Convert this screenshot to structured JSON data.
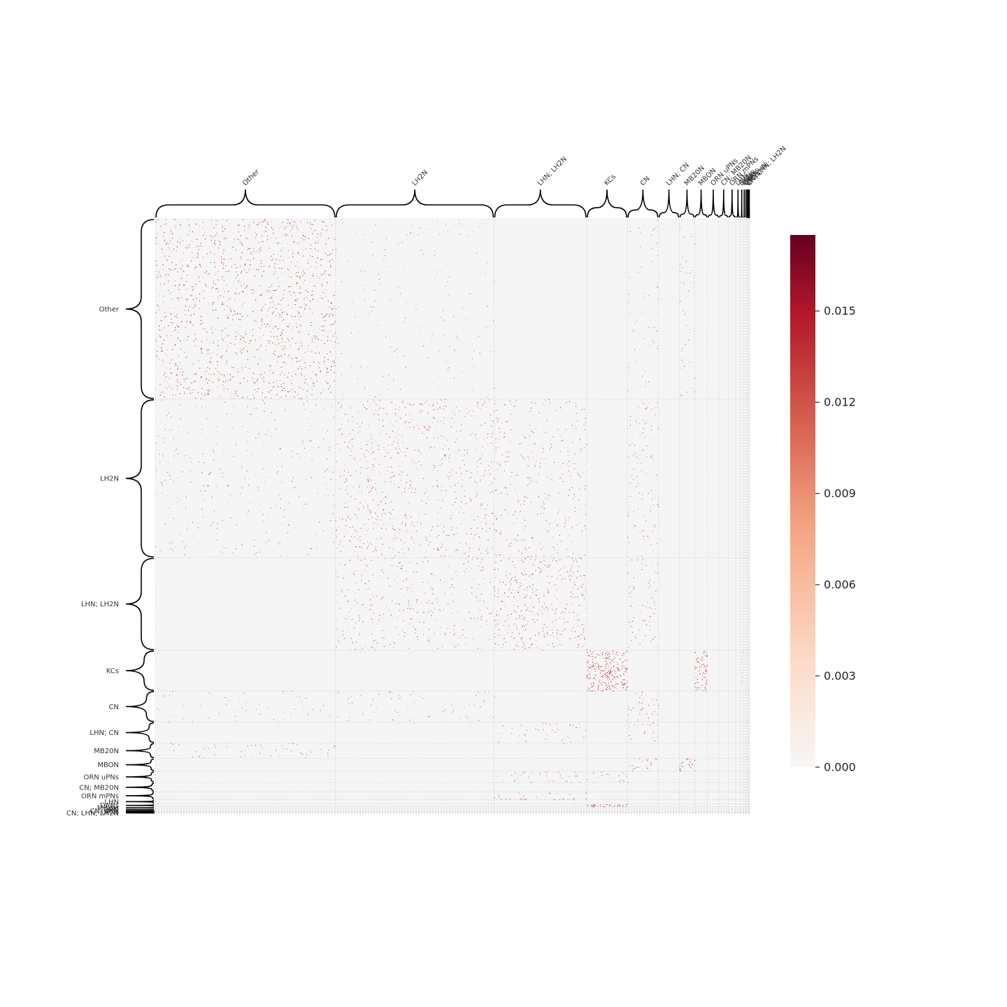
{
  "chart_data": {
    "type": "heatmap",
    "title": "",
    "xlabel": "",
    "ylabel": "",
    "n_nodes": 2400,
    "groups": [
      {
        "name": "Other",
        "size": 728
      },
      {
        "name": "LH2N",
        "size": 640
      },
      {
        "name": "LHN; LH2N",
        "size": 374
      },
      {
        "name": "KCs",
        "size": 164
      },
      {
        "name": "CN",
        "size": 126
      },
      {
        "name": "LHN; CN",
        "size": 84
      },
      {
        "name": "MB20N",
        "size": 62
      },
      {
        "name": "MBON",
        "size": 52
      },
      {
        "name": "ORN uPNs",
        "size": 46
      },
      {
        "name": "CN; MB20N",
        "size": 38
      },
      {
        "name": "ORN mPNs",
        "size": 30
      },
      {
        "name": "LHN",
        "size": 18
      },
      {
        "name": "DANs",
        "size": 12
      },
      {
        "name": "MBINs",
        "size": 8
      },
      {
        "name": "ORN",
        "size": 6
      },
      {
        "name": "CN; LHN",
        "size": 5
      },
      {
        "name": "uPNs",
        "size": 4
      },
      {
        "name": "CN; LHN; LH2N",
        "size": 3
      }
    ],
    "blocks": [
      {
        "row": "Other",
        "col": "Other",
        "density": 0.11,
        "peak": 0.016
      },
      {
        "row": "Other",
        "col": "LH2N",
        "density": 0.018,
        "peak": 0.012
      },
      {
        "row": "Other",
        "col": "CN",
        "density": 0.03,
        "peak": 0.012
      },
      {
        "row": "Other",
        "col": "MB20N",
        "density": 0.04,
        "peak": 0.013
      },
      {
        "row": "LH2N",
        "col": "Other",
        "density": 0.03,
        "peak": 0.013
      },
      {
        "row": "LH2N",
        "col": "LH2N",
        "density": 0.08,
        "peak": 0.014
      },
      {
        "row": "LH2N",
        "col": "LHN; LH2N",
        "density": 0.06,
        "peak": 0.014
      },
      {
        "row": "LH2N",
        "col": "CN",
        "density": 0.06,
        "peak": 0.013
      },
      {
        "row": "LHN; LH2N",
        "col": "LH2N",
        "density": 0.06,
        "peak": 0.014
      },
      {
        "row": "LHN; LH2N",
        "col": "LHN; LH2N",
        "density": 0.12,
        "peak": 0.015
      },
      {
        "row": "LHN; LH2N",
        "col": "CN",
        "density": 0.07,
        "peak": 0.014
      },
      {
        "row": "KCs",
        "col": "KCs",
        "density": 0.45,
        "peak": 0.017
      },
      {
        "row": "KCs",
        "col": "MBON",
        "density": 0.4,
        "peak": 0.016
      },
      {
        "row": "KCs",
        "col": "DANs",
        "density": 0.3,
        "peak": 0.008
      },
      {
        "row": "CN",
        "col": "Other",
        "density": 0.03,
        "peak": 0.012
      },
      {
        "row": "CN",
        "col": "LH2N",
        "density": 0.04,
        "peak": 0.012
      },
      {
        "row": "CN",
        "col": "CN",
        "density": 0.1,
        "peak": 0.014
      },
      {
        "row": "LHN; CN",
        "col": "LHN; LH2N",
        "density": 0.06,
        "peak": 0.013
      },
      {
        "row": "LHN; CN",
        "col": "CN",
        "density": 0.08,
        "peak": 0.014
      },
      {
        "row": "MB20N",
        "col": "Other",
        "density": 0.06,
        "peak": 0.013
      },
      {
        "row": "MBON",
        "col": "CN",
        "density": 0.15,
        "peak": 0.016
      },
      {
        "row": "MBON",
        "col": "MB20N",
        "density": 0.3,
        "peak": 0.017
      },
      {
        "row": "ORN uPNs",
        "col": "LHN; LH2N",
        "density": 0.1,
        "peak": 0.014
      },
      {
        "row": "ORN uPNs",
        "col": "KCs",
        "density": 0.12,
        "peak": 0.014
      },
      {
        "row": "ORN mPNs",
        "col": "LHN; LH2N",
        "density": 0.12,
        "peak": 0.014
      },
      {
        "row": "DANs",
        "col": "KCs",
        "density": 0.9,
        "peak": 0.017
      }
    ],
    "vmin": 0.0,
    "vmax": 0.0175,
    "colormap": "RdBu_r (positive half: light grey to dark red)",
    "colorbar": {
      "ticks": [
        0.0,
        0.003,
        0.006,
        0.009,
        0.012,
        0.015
      ],
      "tick_labels": [
        "0.000",
        "0.003",
        "0.006",
        "0.009",
        "0.012",
        "0.015"
      ]
    },
    "grid": true,
    "colors": {
      "background": "#f5f5f5",
      "low": "#f7f7f7",
      "mid": "#f4a582",
      "high": "#67001f",
      "gridline": "#c8c8c8",
      "brace": "#000000"
    }
  }
}
